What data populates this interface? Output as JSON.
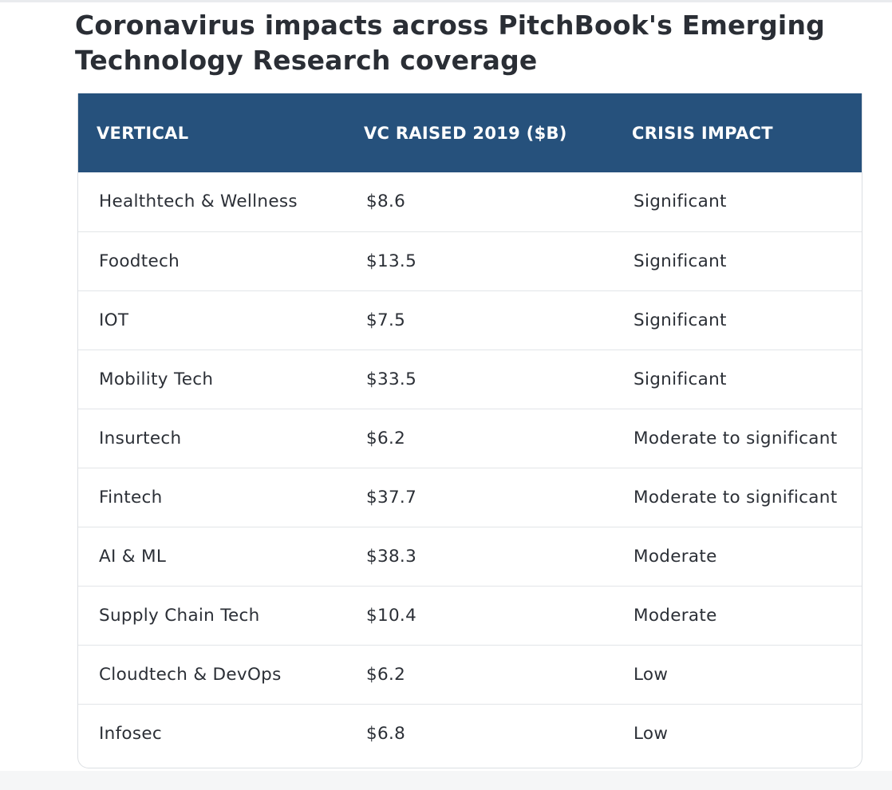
{
  "title": "Coronavirus impacts across PitchBook's Emerging Technology Research coverage",
  "table": {
    "headers": [
      "VERTICAL",
      "VC RAISED 2019 ($B)",
      "CRISIS IMPACT"
    ],
    "rows": [
      [
        "Healthtech & Wellness",
        "$8.6",
        "Significant"
      ],
      [
        "Foodtech",
        "$13.5",
        "Significant"
      ],
      [
        "IOT",
        "$7.5",
        "Significant"
      ],
      [
        "Mobility Tech",
        "$33.5",
        "Significant"
      ],
      [
        "Insurtech",
        "$6.2",
        "Moderate to significant"
      ],
      [
        "Fintech",
        "$37.7",
        "Moderate to significant"
      ],
      [
        "AI & ML",
        "$38.3",
        "Moderate"
      ],
      [
        "Supply Chain Tech",
        "$10.4",
        "Moderate"
      ],
      [
        "Cloudtech & DevOps",
        "$6.2",
        "Low"
      ],
      [
        "Infosec",
        "$6.8",
        "Low"
      ]
    ]
  },
  "colors": {
    "header_bg": "#26517c",
    "header_text": "#ffffff",
    "body_text": "#2b2f36",
    "row_divider": "#e2e5e8"
  }
}
